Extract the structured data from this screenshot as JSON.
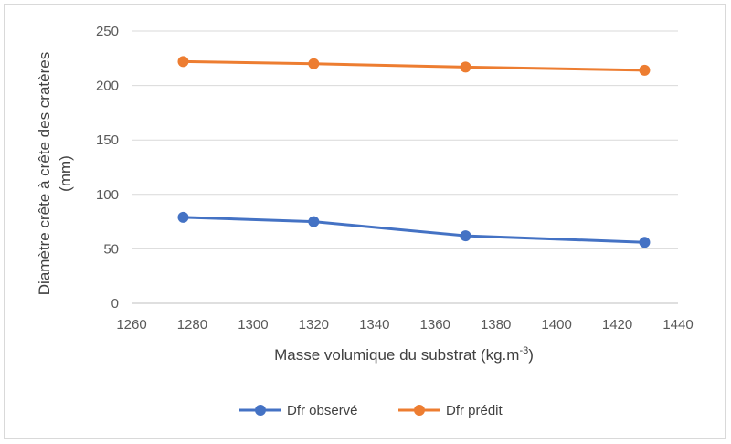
{
  "chart_data": {
    "type": "line",
    "xlabel": "Masse volumique du substrat (kg.m",
    "xlabel_sup": "-3",
    "xlabel_end": ")",
    "ylabel_line1": "Diamètre crête à crête des cratères",
    "ylabel_line2": "(mm)",
    "xlim": [
      1260,
      1440
    ],
    "ylim": [
      0,
      250
    ],
    "xticks": [
      1260,
      1280,
      1300,
      1320,
      1340,
      1360,
      1380,
      1400,
      1420,
      1440
    ],
    "yticks": [
      0,
      50,
      100,
      150,
      200,
      250
    ],
    "grid": "horizontal",
    "legend_position": "bottom",
    "series": [
      {
        "name": "Dfr observé",
        "color": "#4472c4",
        "x": [
          1277,
          1320,
          1370,
          1429
        ],
        "y": [
          79,
          75,
          62,
          56
        ]
      },
      {
        "name": "Dfr prédit",
        "color": "#ed7d31",
        "x": [
          1277,
          1320,
          1370,
          1429
        ],
        "y": [
          222,
          220,
          217,
          214
        ]
      }
    ]
  }
}
